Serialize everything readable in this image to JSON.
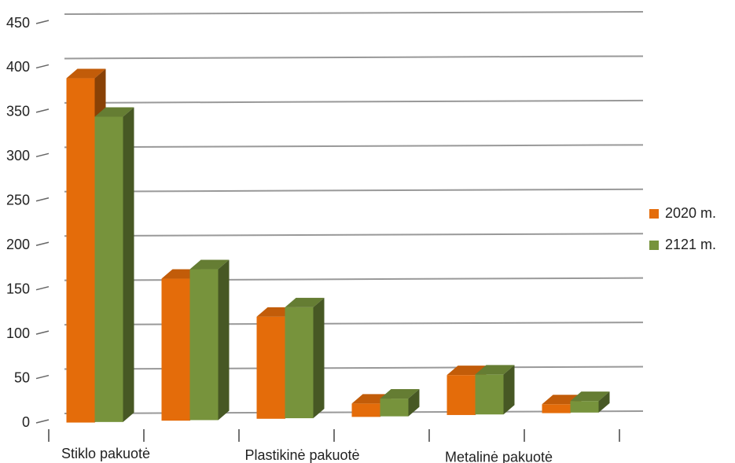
{
  "chart_data": {
    "type": "bar3d",
    "categories": [
      "Stiklo pakuotė",
      null,
      "Plastikinė pakuotė",
      null,
      "Metalinė pakuotė",
      null
    ],
    "series": [
      {
        "name": "2020 m.",
        "color": "#e46c0a",
        "values": [
          388,
          160,
          115,
          15,
          45,
          10
        ]
      },
      {
        "name": "2121 m.",
        "color": "#77933c",
        "values": [
          344,
          170,
          125,
          20,
          45,
          13
        ]
      }
    ],
    "ylim": [
      0,
      450
    ],
    "yticks": [
      0,
      50,
      100,
      150,
      200,
      250,
      300,
      350,
      400,
      450
    ],
    "grid": true,
    "legend": "right"
  }
}
